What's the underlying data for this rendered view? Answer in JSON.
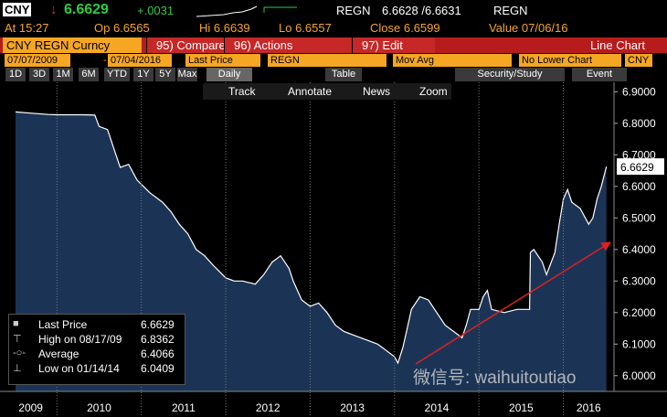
{
  "header": {
    "ticker": "CNY",
    "arrow": "↓",
    "last": "6.6629",
    "change": "+.0031",
    "source1": "REGN",
    "bid_ask": "6.6628 /6.6631",
    "source2": "REGN"
  },
  "quote": [
    "At 15:27",
    "Op 6.6565",
    "Hi 6.6639",
    "Lo 6.6557",
    "Close 6.6599",
    "Value 07/06/16"
  ],
  "menu": {
    "security": "CNY REGN Curncy",
    "buttons": [
      "95) Compare",
      "96) Actions",
      "97) Edit"
    ],
    "view": "Line Chart"
  },
  "settings": [
    "07/07/2009",
    "-",
    "07/04/2016",
    "Last Price",
    "REGN",
    "Mov Avg",
    "No Lower Chart",
    "CNY"
  ],
  "periods": [
    "1D",
    "3D",
    "1M",
    "6M",
    "YTD",
    "1Y",
    "5Y",
    "Max"
  ],
  "frequency": "Daily",
  "table": "Table",
  "study": "Security/Study",
  "event": "Event",
  "tools": [
    "Track",
    "Annotate",
    "News",
    "Zoom"
  ],
  "watermark": "微信号: waihuitoutiao",
  "chart_data": {
    "type": "line",
    "x": [
      2009.51,
      2009.7,
      2009.9,
      2010.0,
      2010.3,
      2010.45,
      2010.5,
      2010.6,
      2010.7,
      2010.75,
      2010.85,
      2010.95,
      2011.1,
      2011.25,
      2011.35,
      2011.45,
      2011.55,
      2011.65,
      2011.75,
      2011.85,
      2012.0,
      2012.1,
      2012.2,
      2012.35,
      2012.45,
      2012.55,
      2012.65,
      2012.75,
      2012.8,
      2012.9,
      2013.0,
      2013.1,
      2013.2,
      2013.3,
      2013.4,
      2013.5,
      2013.6,
      2013.7,
      2013.8,
      2013.9,
      2014.0,
      2014.04,
      2014.1,
      2014.15,
      2014.2,
      2014.3,
      2014.4,
      2014.5,
      2014.6,
      2014.7,
      2014.8,
      2014.85,
      2014.9,
      2015.0,
      2015.05,
      2015.1,
      2015.15,
      2015.3,
      2015.45,
      2015.6,
      2015.61,
      2015.65,
      2015.75,
      2015.8,
      2015.9,
      2015.95,
      2016.0,
      2016.05,
      2016.1,
      2016.2,
      2016.3,
      2016.35,
      2016.4,
      2016.45,
      2016.51
    ],
    "series": [
      {
        "name": "Last Price",
        "color": "#ffffff",
        "fill": "#1b3456",
        "values": [
          6.836,
          6.832,
          6.828,
          6.827,
          6.827,
          6.826,
          6.79,
          6.78,
          6.7,
          6.66,
          6.67,
          6.62,
          6.58,
          6.55,
          6.52,
          6.48,
          6.45,
          6.4,
          6.38,
          6.35,
          6.31,
          6.3,
          6.3,
          6.29,
          6.32,
          6.36,
          6.38,
          6.34,
          6.3,
          6.24,
          6.22,
          6.23,
          6.2,
          6.16,
          6.14,
          6.13,
          6.12,
          6.11,
          6.1,
          6.08,
          6.06,
          6.04,
          6.09,
          6.15,
          6.21,
          6.25,
          6.24,
          6.2,
          6.16,
          6.14,
          6.12,
          6.16,
          6.21,
          6.21,
          6.25,
          6.27,
          6.21,
          6.2,
          6.21,
          6.21,
          6.39,
          6.4,
          6.36,
          6.32,
          6.39,
          6.48,
          6.56,
          6.59,
          6.55,
          6.53,
          6.48,
          6.5,
          6.56,
          6.6,
          6.6629
        ]
      }
    ],
    "stats": [
      {
        "label": "High on 08/17/09",
        "value": 6.8362
      },
      {
        "label": "Average",
        "value": 6.4066
      },
      {
        "label": "Low on 01/14/14",
        "value": 6.0409
      }
    ],
    "xlim": [
      2009.38,
      2016.6
    ],
    "xticks": [
      2009,
      2010,
      2011,
      2012,
      2013,
      2014,
      2015,
      2016
    ],
    "ylim": [
      5.95,
      6.93
    ],
    "yticks": [
      {
        "value": 6.0,
        "label": "6.0000"
      },
      {
        "value": 6.1,
        "label": "6.1000"
      },
      {
        "value": 6.2,
        "label": "6.2000"
      },
      {
        "value": 6.3,
        "label": "6.3000"
      },
      {
        "value": 6.4,
        "label": "6.4000"
      },
      {
        "value": 6.5,
        "label": "6.5000"
      },
      {
        "value": 6.6,
        "label": "6.6000"
      },
      {
        "value": 6.7,
        "label": "6.7000"
      },
      {
        "value": 6.8,
        "label": "6.8000"
      },
      {
        "value": 6.9,
        "label": "6.9000"
      }
    ],
    "grid": true
  }
}
